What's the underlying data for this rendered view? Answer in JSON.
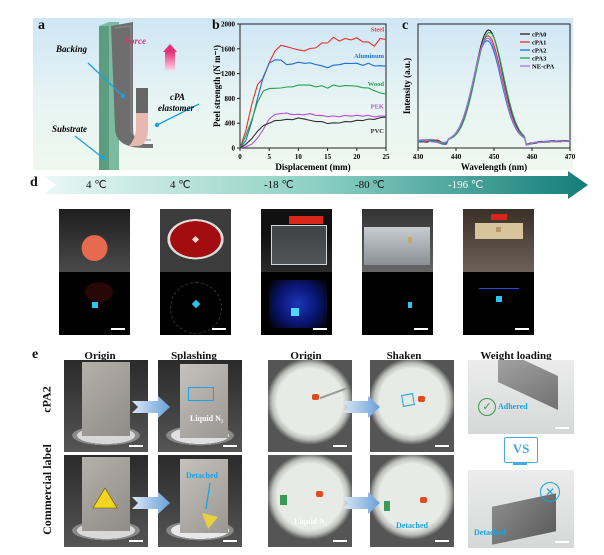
{
  "panels": {
    "a": {
      "label": "a",
      "annotations": {
        "force": "Force",
        "backing": "Backing",
        "elastomer_line1": "cPA",
        "elastomer_line2": "elastomer",
        "substrate": "Substrate"
      }
    },
    "b": {
      "label": "b"
    },
    "c": {
      "label": "c"
    },
    "d": {
      "label": "d",
      "temperatures": [
        "4 ℃",
        "4 ℃",
        "-18 ℃",
        "-80 ℃",
        "-196 ℃"
      ],
      "scenes": [
        "apple",
        "red agar dish",
        "tube rack",
        "steel freezer box",
        "liquid nitrogen dewar rack"
      ]
    },
    "e": {
      "label": "e",
      "column_headers": [
        "Origin",
        "Splashing",
        "Origin",
        "Shaken",
        "Weight loading"
      ],
      "row_labels": [
        "cPA2",
        "Commercial label"
      ],
      "overlays": {
        "liquid_n2_top": "Liquid N₂",
        "detached_splash": "Detached",
        "liquid_n2_bottom": "Liquid N₂",
        "detached_shaken": "Detached",
        "adhered": "Adhered",
        "detached_weight": "Detached",
        "vs": "VS"
      }
    }
  },
  "colors": {
    "steel": "#e8312e",
    "aluminum": "#1f6fd6",
    "wood": "#27a04a",
    "pek": "#b84fe0",
    "pvc": "#333333",
    "cpa0": "#222222",
    "cpa1": "#e8312e",
    "cpa2": "#1f6fd6",
    "cpa3": "#27a04a",
    "ne_cpa": "#b070e8",
    "highlight": "#1aa3e0",
    "arrow_teal": "#1f8c84"
  },
  "chart_data": [
    {
      "type": "line",
      "panel": "b",
      "title": "",
      "xlabel": "Displacement (mm)",
      "ylabel": "Peel strength (N m⁻¹)",
      "xlim": [
        0,
        25
      ],
      "ylim": [
        0,
        2000
      ],
      "xticks": [
        "0",
        "5",
        "10",
        "15",
        "20",
        "25"
      ],
      "yticks": [
        "0",
        "400",
        "800",
        "1200",
        "1600",
        "2000"
      ],
      "series": [
        {
          "name": "Steel",
          "x": [
            0,
            1,
            2,
            3,
            4,
            5,
            6,
            7,
            8,
            9,
            10,
            11,
            12,
            13,
            14,
            15,
            16,
            17,
            18,
            19,
            20,
            21,
            22,
            23,
            24,
            25
          ],
          "values": [
            0,
            280,
            700,
            1020,
            1130,
            1380,
            1560,
            1660,
            1630,
            1610,
            1580,
            1570,
            1600,
            1620,
            1690,
            1700,
            1780,
            1730,
            1760,
            1750,
            1770,
            1720,
            1700,
            1650,
            1760,
            1750
          ]
        },
        {
          "name": "Aluminum",
          "x": [
            0,
            1,
            2,
            3,
            4,
            5,
            6,
            7,
            8,
            9,
            10,
            11,
            12,
            13,
            14,
            15,
            16,
            17,
            18,
            19,
            20,
            21,
            22,
            23,
            24,
            25
          ],
          "values": [
            0,
            120,
            420,
            800,
            1150,
            1370,
            1420,
            1420,
            1340,
            1360,
            1380,
            1370,
            1370,
            1350,
            1320,
            1300,
            1330,
            1350,
            1360,
            1370,
            1360,
            1340,
            1360,
            1330,
            1320,
            1320
          ]
        },
        {
          "name": "Wood",
          "x": [
            0,
            1,
            2,
            3,
            4,
            5,
            6,
            7,
            8,
            9,
            10,
            11,
            12,
            13,
            14,
            15,
            16,
            17,
            18,
            19,
            20,
            21,
            22,
            23,
            24,
            25
          ],
          "values": [
            0,
            200,
            450,
            740,
            920,
            960,
            960,
            970,
            980,
            990,
            1010,
            1020,
            1010,
            990,
            1000,
            970,
            1010,
            1000,
            1000,
            1010,
            990,
            980,
            960,
            930,
            880,
            870
          ]
        },
        {
          "name": "PEK",
          "x": [
            0,
            1,
            2,
            3,
            4,
            5,
            6,
            7,
            8,
            9,
            10,
            11,
            12,
            13,
            14,
            15,
            16,
            17,
            18,
            19,
            20,
            21,
            22,
            23,
            24,
            25
          ],
          "values": [
            0,
            20,
            60,
            160,
            300,
            470,
            540,
            560,
            560,
            540,
            540,
            540,
            550,
            530,
            520,
            510,
            510,
            510,
            520,
            520,
            520,
            520,
            520,
            510,
            510,
            510
          ]
        },
        {
          "name": "PVC",
          "x": [
            0,
            1,
            2,
            3,
            4,
            5,
            6,
            7,
            8,
            9,
            10,
            11,
            12,
            13,
            14,
            15,
            16,
            17,
            18,
            19,
            20,
            21,
            22,
            23,
            24,
            25
          ],
          "values": [
            0,
            60,
            150,
            270,
            360,
            400,
            440,
            450,
            460,
            460,
            480,
            470,
            440,
            430,
            420,
            400,
            400,
            410,
            420,
            430,
            440,
            450,
            460,
            470,
            480,
            500
          ]
        }
      ],
      "legend": "inline labels at right end of each curve"
    },
    {
      "type": "line",
      "panel": "c",
      "title": "",
      "xlabel": "Wavelength (nm)",
      "ylabel": "Intensity (a.u.)",
      "xlim": [
        430,
        470
      ],
      "ylim": [
        0,
        1.05
      ],
      "xticks": [
        "430",
        "440",
        "450",
        "460",
        "470"
      ],
      "yticks": [],
      "series": [
        {
          "name": "cPA0",
          "peak_x": 448.6,
          "peak_y": 1.0
        },
        {
          "name": "cPA1",
          "peak_x": 448.4,
          "peak_y": 0.95
        },
        {
          "name": "cPA2",
          "peak_x": 448.2,
          "peak_y": 0.91
        },
        {
          "name": "cPA3",
          "peak_x": 448.8,
          "peak_y": 0.98
        },
        {
          "name": "NE-cPA",
          "peak_x": 448.3,
          "peak_y": 0.93
        }
      ],
      "legend": "top-right",
      "note": "Gaussian-like emission peaks near 448 nm with minima near 437 nm and 460 nm"
    }
  ]
}
